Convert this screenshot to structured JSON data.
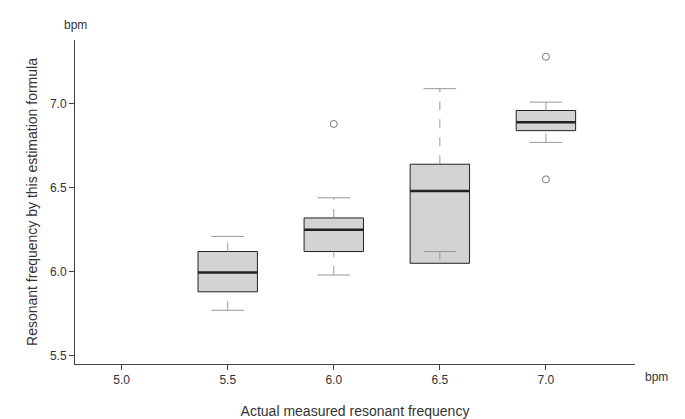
{
  "chart_data": {
    "type": "box",
    "xlabel": "Actual measured resonant frequency",
    "ylabel": "Resonant frequency by this estimation formula",
    "annotations": [
      "bpm",
      "bpm"
    ],
    "x": [
      5.5,
      6.0,
      6.5,
      7.0
    ],
    "q1": [
      5.88,
      6.12,
      6.05,
      6.84
    ],
    "median": [
      5.995,
      6.25,
      6.48,
      6.89
    ],
    "q3": [
      6.12,
      6.32,
      6.64,
      6.96
    ],
    "whisker_low": [
      5.77,
      5.98,
      6.12,
      6.77
    ],
    "whisker_high": [
      6.21,
      6.44,
      7.09,
      7.01
    ],
    "outliers": [
      [],
      [
        6.88
      ],
      [],
      [
        7.28,
        6.55
      ]
    ],
    "color": "#d3d3d3",
    "xlim": [
      4.78,
      7.42
    ],
    "ylim": [
      5.45,
      7.38
    ],
    "xticks": [
      {
        "value": 5,
        "label": "5.0"
      },
      5.5,
      {
        "value": 6,
        "label": "6.0"
      },
      6.5,
      {
        "value": 7,
        "label": "7.0"
      }
    ],
    "yticks": [
      5.5,
      {
        "value": 6,
        "label": "6.0"
      },
      6.5,
      {
        "value": 7,
        "label": "7.0"
      }
    ],
    "grid": false
  }
}
